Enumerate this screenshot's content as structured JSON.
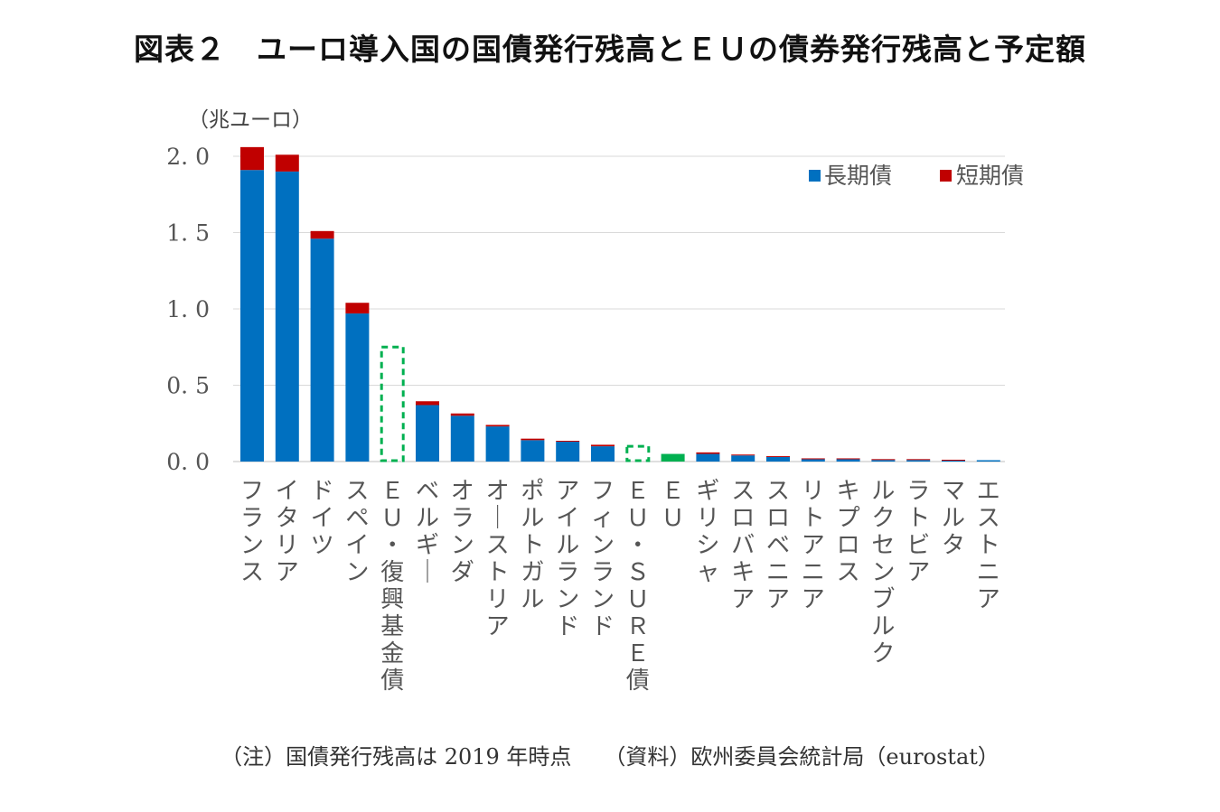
{
  "title": "図表２　ユーロ導入国の国債発行残高とＥＵの債券発行残高と予定額",
  "note": "（注）国債発行残高は 2019 年時点　　（資料）欧州委員会統計局（eurostat）",
  "chart_data": {
    "type": "bar",
    "stacked": true,
    "unit_label": "（兆ユーロ）",
    "ylim": [
      0,
      2.0
    ],
    "yticks": [
      0.0,
      0.5,
      1.0,
      1.5,
      2.0
    ],
    "ytick_labels": [
      "0. 0",
      "0. 5",
      "1. 0",
      "1. 5",
      "2. 0"
    ],
    "grid": true,
    "legend_position": "top-right",
    "categories": [
      "フランス",
      "イタリア",
      "ドイツ",
      "スペイン",
      "ＥＵ・復興基金債",
      "ベルギー",
      "オランダ",
      "オーストリア",
      "ポルトガル",
      "アイルランド",
      "フィンランド",
      "ＥＵ・ＳＵＲＥ債",
      "ＥＵ",
      "ギリシャ",
      "スロバキア",
      "スロベニア",
      "リトアニア",
      "キプロス",
      "ルクセンブルク",
      "ラトビア",
      "マルタ",
      "エストニア"
    ],
    "series": [
      {
        "name": "長期債",
        "color": "#0070c0",
        "values": [
          1.91,
          1.9,
          1.46,
          0.97,
          0,
          0.37,
          0.3,
          0.23,
          0.14,
          0.13,
          0.1,
          0,
          0,
          0.05,
          0.04,
          0.03,
          0.015,
          0.015,
          0.01,
          0.01,
          0.006,
          0.002
        ]
      },
      {
        "name": "短期債",
        "color": "#c00000",
        "values": [
          0.15,
          0.11,
          0.05,
          0.07,
          0,
          0.025,
          0.015,
          0.01,
          0.01,
          0.005,
          0.01,
          0,
          0,
          0.01,
          0.003,
          0.002,
          0.001,
          0.001,
          0.001,
          0.001,
          0.002,
          0.0
        ]
      }
    ],
    "planned": [
      {
        "category": "ＥＵ・復興基金債",
        "value": 0.75,
        "style": "dashed-outline",
        "color": "#00b050"
      },
      {
        "category": "ＥＵ・ＳＵＲＥ債",
        "value": 0.1,
        "style": "dashed-outline",
        "color": "#00b050"
      }
    ],
    "eu_actual": {
      "category": "ＥＵ",
      "value": 0.05,
      "color": "#00b050"
    }
  }
}
